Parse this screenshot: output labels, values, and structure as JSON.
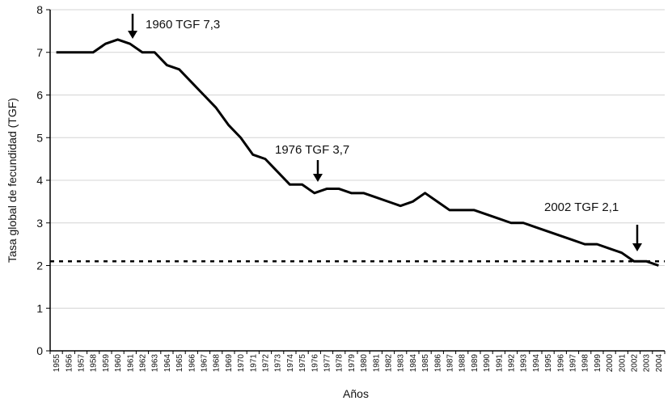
{
  "chart_data": {
    "type": "line",
    "x_label": "Años",
    "y_label": "Tasa global de fecundidad (TGF)",
    "categories": [
      "1955",
      "1956",
      "1957",
      "1958",
      "1959",
      "1960",
      "1961",
      "1962",
      "1963",
      "1964",
      "1965",
      "1966",
      "1967",
      "1968",
      "1969",
      "1970",
      "1971",
      "1972",
      "1973",
      "1974",
      "1975",
      "1976",
      "1977",
      "1978",
      "1979",
      "1980",
      "1981",
      "1982",
      "1983",
      "1984",
      "1985",
      "1986",
      "1987",
      "1988",
      "1989",
      "1990",
      "1991",
      "1992",
      "1993",
      "1994",
      "1995",
      "1996",
      "1997",
      "1998",
      "1999",
      "2000",
      "2001",
      "2002",
      "2003",
      "2004"
    ],
    "values": [
      7.0,
      7.0,
      7.0,
      7.0,
      7.2,
      7.3,
      7.2,
      7.0,
      7.0,
      6.7,
      6.6,
      6.3,
      6.0,
      5.7,
      5.3,
      5.0,
      4.6,
      4.5,
      4.2,
      3.9,
      3.9,
      3.7,
      3.8,
      3.8,
      3.7,
      3.7,
      3.6,
      3.5,
      3.4,
      3.5,
      3.7,
      3.5,
      3.3,
      3.3,
      3.3,
      3.2,
      3.1,
      3.0,
      3.0,
      2.9,
      2.8,
      2.7,
      2.6,
      2.5,
      2.5,
      2.4,
      2.3,
      2.1,
      2.1,
      2.0
    ],
    "color": "#000000",
    "reference_line": 2.1,
    "ylim": [
      0,
      8
    ],
    "yticks": [
      0,
      1,
      2,
      3,
      4,
      5,
      6,
      7,
      8
    ],
    "grid": true,
    "annotations": [
      "1960 TGF 7,3",
      "1976 TGF 3,7",
      "2002 TGF 2,1"
    ]
  }
}
